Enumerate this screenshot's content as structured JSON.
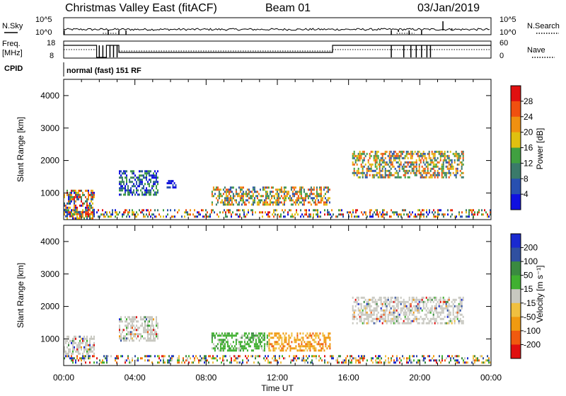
{
  "header": {
    "station": "Christmas Valley East (fitACF)",
    "beam": "Beam 01",
    "date": "03/Jan/2019"
  },
  "top_panels": {
    "nsky_label": "N.Sky",
    "nsearch_label": "N.Search",
    "freq_label_1": "Freq.",
    "freq_label_2": "[MHz]",
    "nave_label": "Nave",
    "cpid_label": "CPID",
    "cpid_value": "normal (fast) 151 RF",
    "nsky_ticks": [
      "10^5",
      "10^0"
    ],
    "nsearch_ticks": [
      "10^5",
      "10^0"
    ],
    "freq_ticks": [
      "18",
      "8"
    ],
    "nave_ticks": [
      "60",
      "0"
    ]
  },
  "colors": {
    "power": [
      "#1010e0",
      "#2850b0",
      "#3a7a6a",
      "#40a040",
      "#e0c010",
      "#f09010",
      "#f05010",
      "#e01010"
    ],
    "velocity": [
      "#e01010",
      "#f05a10",
      "#f09a10",
      "#f0c040",
      "#c8c8c0",
      "#40b030",
      "#3a8a40",
      "#3050a0",
      "#1a2ad0"
    ]
  },
  "chart_data": [
    {
      "type": "heatmap",
      "name": "Power",
      "ylabel": "Slant Range [km]",
      "xlabel": "Time UT",
      "yticks": [
        "1000",
        "2000",
        "3000",
        "4000"
      ],
      "xticks": [
        "00:00",
        "04:00",
        "08:00",
        "12:00",
        "16:00",
        "20:00",
        "00:00"
      ],
      "ylim": [
        180,
        4500
      ],
      "xlim_hours": [
        0,
        24
      ],
      "colorbar": {
        "label": "Power [dB]",
        "ticks": [
          "28",
          "24",
          "20",
          "16",
          "12",
          "8",
          "4"
        ]
      },
      "regions": [
        {
          "t0": 0.0,
          "t1": 1.8,
          "r0": 180,
          "r1": 1100,
          "level": "mixed-high"
        },
        {
          "t0": 3.1,
          "t1": 5.4,
          "r0": 900,
          "r1": 1700,
          "level": "mixed-low"
        },
        {
          "t0": 5.7,
          "t1": 6.4,
          "r0": 1100,
          "r1": 1400,
          "level": "low"
        },
        {
          "t0": 8.3,
          "t1": 15.0,
          "r0": 600,
          "r1": 1200,
          "level": "mixed-mid"
        },
        {
          "t0": 16.2,
          "t1": 22.5,
          "r0": 1400,
          "r1": 2300,
          "level": "mixed-mid"
        },
        {
          "t0": 0.0,
          "t1": 24.0,
          "r0": 180,
          "r1": 500,
          "level": "ground-scatter"
        }
      ]
    },
    {
      "type": "heatmap",
      "name": "Velocity",
      "ylabel": "Slant Range [km]",
      "xlabel": "Time UT",
      "yticks": [
        "1000",
        "2000",
        "3000",
        "4000"
      ],
      "xticks": [
        "00:00",
        "04:00",
        "08:00",
        "12:00",
        "16:00",
        "20:00",
        "00:00"
      ],
      "ylim": [
        180,
        4500
      ],
      "xlim_hours": [
        0,
        24
      ],
      "colorbar": {
        "label": "Velocity [m s⁻¹]",
        "ticks": [
          "200",
          "100",
          "50",
          "15",
          "-15",
          "-50",
          "-100",
          "-200"
        ]
      },
      "regions": [
        {
          "t0": 0.0,
          "t1": 1.8,
          "r0": 500,
          "r1": 1100,
          "level": "near-zero"
        },
        {
          "t0": 3.1,
          "t1": 5.4,
          "r0": 900,
          "r1": 1700,
          "level": "near-zero"
        },
        {
          "t0": 8.3,
          "t1": 11.5,
          "r0": 600,
          "r1": 1200,
          "level": "positive"
        },
        {
          "t0": 11.5,
          "t1": 15.0,
          "r0": 600,
          "r1": 1200,
          "level": "negative"
        },
        {
          "t0": 16.2,
          "t1": 22.5,
          "r0": 1400,
          "r1": 2300,
          "level": "near-zero"
        },
        {
          "t0": 0.0,
          "t1": 24.0,
          "r0": 180,
          "r1": 500,
          "level": "ground-scatter"
        }
      ]
    }
  ]
}
